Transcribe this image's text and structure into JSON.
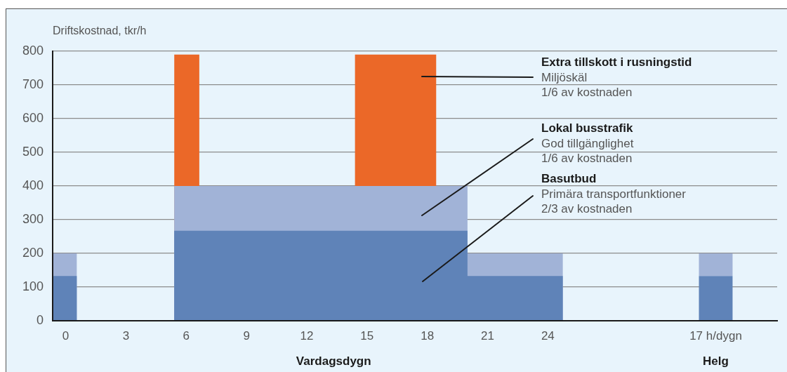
{
  "chart_data": [
    {
      "type": "area",
      "ylabel": "Driftskostnad, tkr/h",
      "xlabel": "Vardagsdygn",
      "xlim": [
        -0.65,
        29.3
      ],
      "xticks": [
        0,
        3,
        6,
        9,
        12,
        15,
        18,
        21,
        24
      ],
      "ylim": [
        0,
        800
      ],
      "yticks": [
        0,
        100,
        200,
        300,
        400,
        500,
        600,
        700,
        800
      ],
      "grid": "y",
      "series": [
        {
          "name": "Basutbud",
          "color": "#5f83b8",
          "x": [
            -0.65,
            0.55,
            0.55,
            5.4,
            5.4,
            20,
            20,
            24.75,
            24.75
          ],
          "values": [
            133,
            133,
            0,
            0,
            267,
            267,
            133,
            133,
            0
          ]
        },
        {
          "name": "Lokal busstrafik",
          "color": "#a1b3d7",
          "x": [
            -0.65,
            0.55,
            0.55,
            5.4,
            5.4,
            20,
            20,
            24.75,
            24.75
          ],
          "values": [
            200,
            200,
            0,
            0,
            400,
            400,
            200,
            200,
            0
          ]
        },
        {
          "name": "Extra tillskott i rusningstid",
          "color": "#eb6828",
          "x": [
            5.4,
            5.4,
            6.65,
            6.65,
            14.4,
            14.4,
            18.45,
            18.45
          ],
          "values": [
            0,
            790,
            790,
            0,
            0,
            790,
            790,
            0
          ]
        }
      ],
      "annotations": [
        "Primära transportfunktioner\n2/3 av kostnaden",
        "God tillgänglighet\n1/6 av kostnaden",
        "Miljöskäl\n1/6 av kostnaden"
      ]
    },
    {
      "type": "bar",
      "stacked": true,
      "xlabel": "Helg",
      "categories": [
        "17 h/dygn"
      ],
      "ylim": [
        0,
        800
      ],
      "yticks": [
        0,
        100,
        200,
        300,
        400,
        500,
        600,
        700,
        800
      ],
      "grid": "y",
      "tick_labels": "x",
      "series": [
        {
          "color": "#5f83b8",
          "values": [
            133
          ]
        },
        {
          "color": "#a1b3d7",
          "values": [
            67
          ]
        }
      ]
    }
  ]
}
